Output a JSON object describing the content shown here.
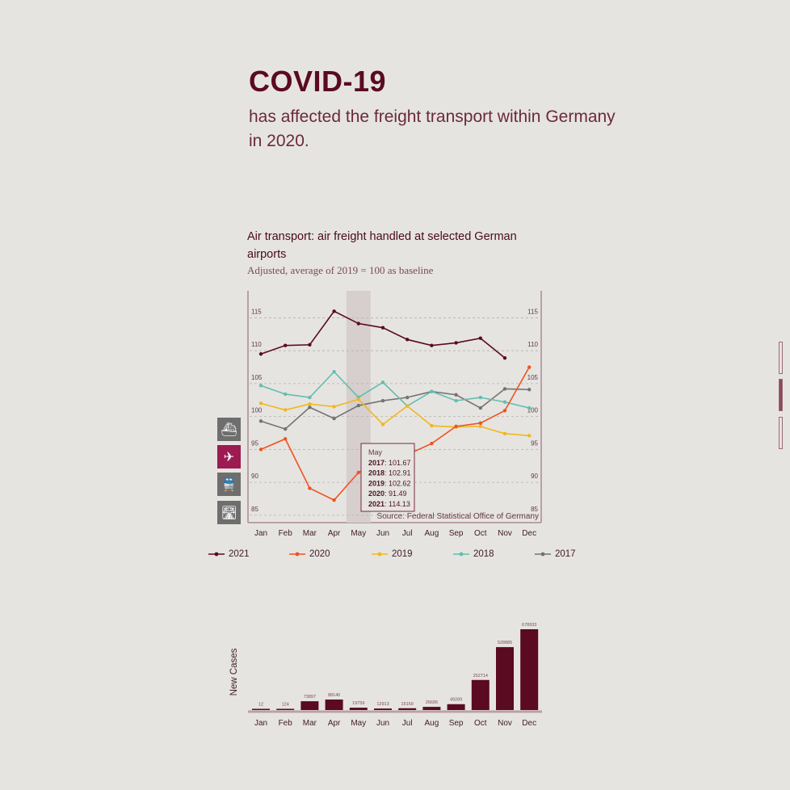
{
  "headline": {
    "title": "COVID-19",
    "subtitle_line1": "has affected the freight transport within Germany",
    "subtitle_line2": "in 2020."
  },
  "chart_header": {
    "title_line1": "Air transport: air freight handled at selected German",
    "title_line2": "airports",
    "subtitle": "Adjusted, average of 2019 = 100 as baseline"
  },
  "mode_buttons": [
    {
      "name": "ship-icon",
      "glyph": "⛴",
      "active": false
    },
    {
      "name": "plane-icon",
      "glyph": "✈",
      "active": true
    },
    {
      "name": "train-icon",
      "glyph": "🚆",
      "active": false
    },
    {
      "name": "road-icon",
      "glyph": "🛣",
      "active": false
    }
  ],
  "chart_data": [
    {
      "type": "line",
      "categories": [
        "Jan",
        "Feb",
        "Mar",
        "Apr",
        "May",
        "Jun",
        "Jul",
        "Aug",
        "Sep",
        "Oct",
        "Nov",
        "Dec"
      ],
      "y_ticks": [
        85,
        90,
        95,
        100,
        105,
        110,
        115
      ],
      "ylim": [
        84,
        118
      ],
      "grid": true,
      "highlight_category": "May",
      "source": "Source: Federal Statistical Office of Germany",
      "series": [
        {
          "name": "2021",
          "color": "#5a0a21",
          "values": [
            109.5,
            110.8,
            110.9,
            116.0,
            114.13,
            113.5,
            111.7,
            110.8,
            111.2,
            111.9,
            108.9,
            null
          ]
        },
        {
          "name": "2020",
          "color": "#ef5320",
          "values": [
            95.0,
            96.6,
            89.1,
            87.3,
            91.49,
            93.4,
            94.2,
            95.9,
            98.5,
            99.0,
            100.9,
            107.5
          ]
        },
        {
          "name": "2019",
          "color": "#f0b81e",
          "values": [
            102.0,
            101.0,
            101.9,
            101.5,
            102.62,
            98.8,
            101.6,
            98.6,
            98.4,
            98.5,
            97.4,
            97.1
          ]
        },
        {
          "name": "2018",
          "color": "#63bdb0",
          "values": [
            104.7,
            103.4,
            102.9,
            106.8,
            102.91,
            105.2,
            101.6,
            103.8,
            102.4,
            102.9,
            102.2,
            101.3
          ]
        },
        {
          "name": "2017",
          "color": "#737373",
          "values": [
            99.3,
            98.1,
            101.4,
            99.7,
            101.67,
            102.4,
            102.9,
            103.8,
            103.3,
            101.3,
            104.2,
            104.1
          ]
        }
      ],
      "tooltip": {
        "title": "May",
        "rows": [
          {
            "year": "2017",
            "value": "101.67"
          },
          {
            "year": "2018",
            "value": "102.91"
          },
          {
            "year": "2019",
            "value": "102.62"
          },
          {
            "year": "2020",
            "value": "91.49"
          },
          {
            "year": "2021",
            "value": "114.13"
          }
        ]
      }
    },
    {
      "type": "bar",
      "ylabel": "New Cases",
      "color": "#5a0a21",
      "categories": [
        "Jan",
        "Feb",
        "Mar",
        "Apr",
        "May",
        "Jun",
        "Jul",
        "Aug",
        "Sep",
        "Oct",
        "Nov",
        "Dec"
      ],
      "values": [
        12,
        124,
        73897,
        88140,
        19759,
        12913,
        15169,
        26695,
        49269,
        252714,
        528885,
        678933
      ]
    }
  ],
  "side_nav": [
    {
      "active": false
    },
    {
      "active": true
    },
    {
      "active": false
    }
  ]
}
